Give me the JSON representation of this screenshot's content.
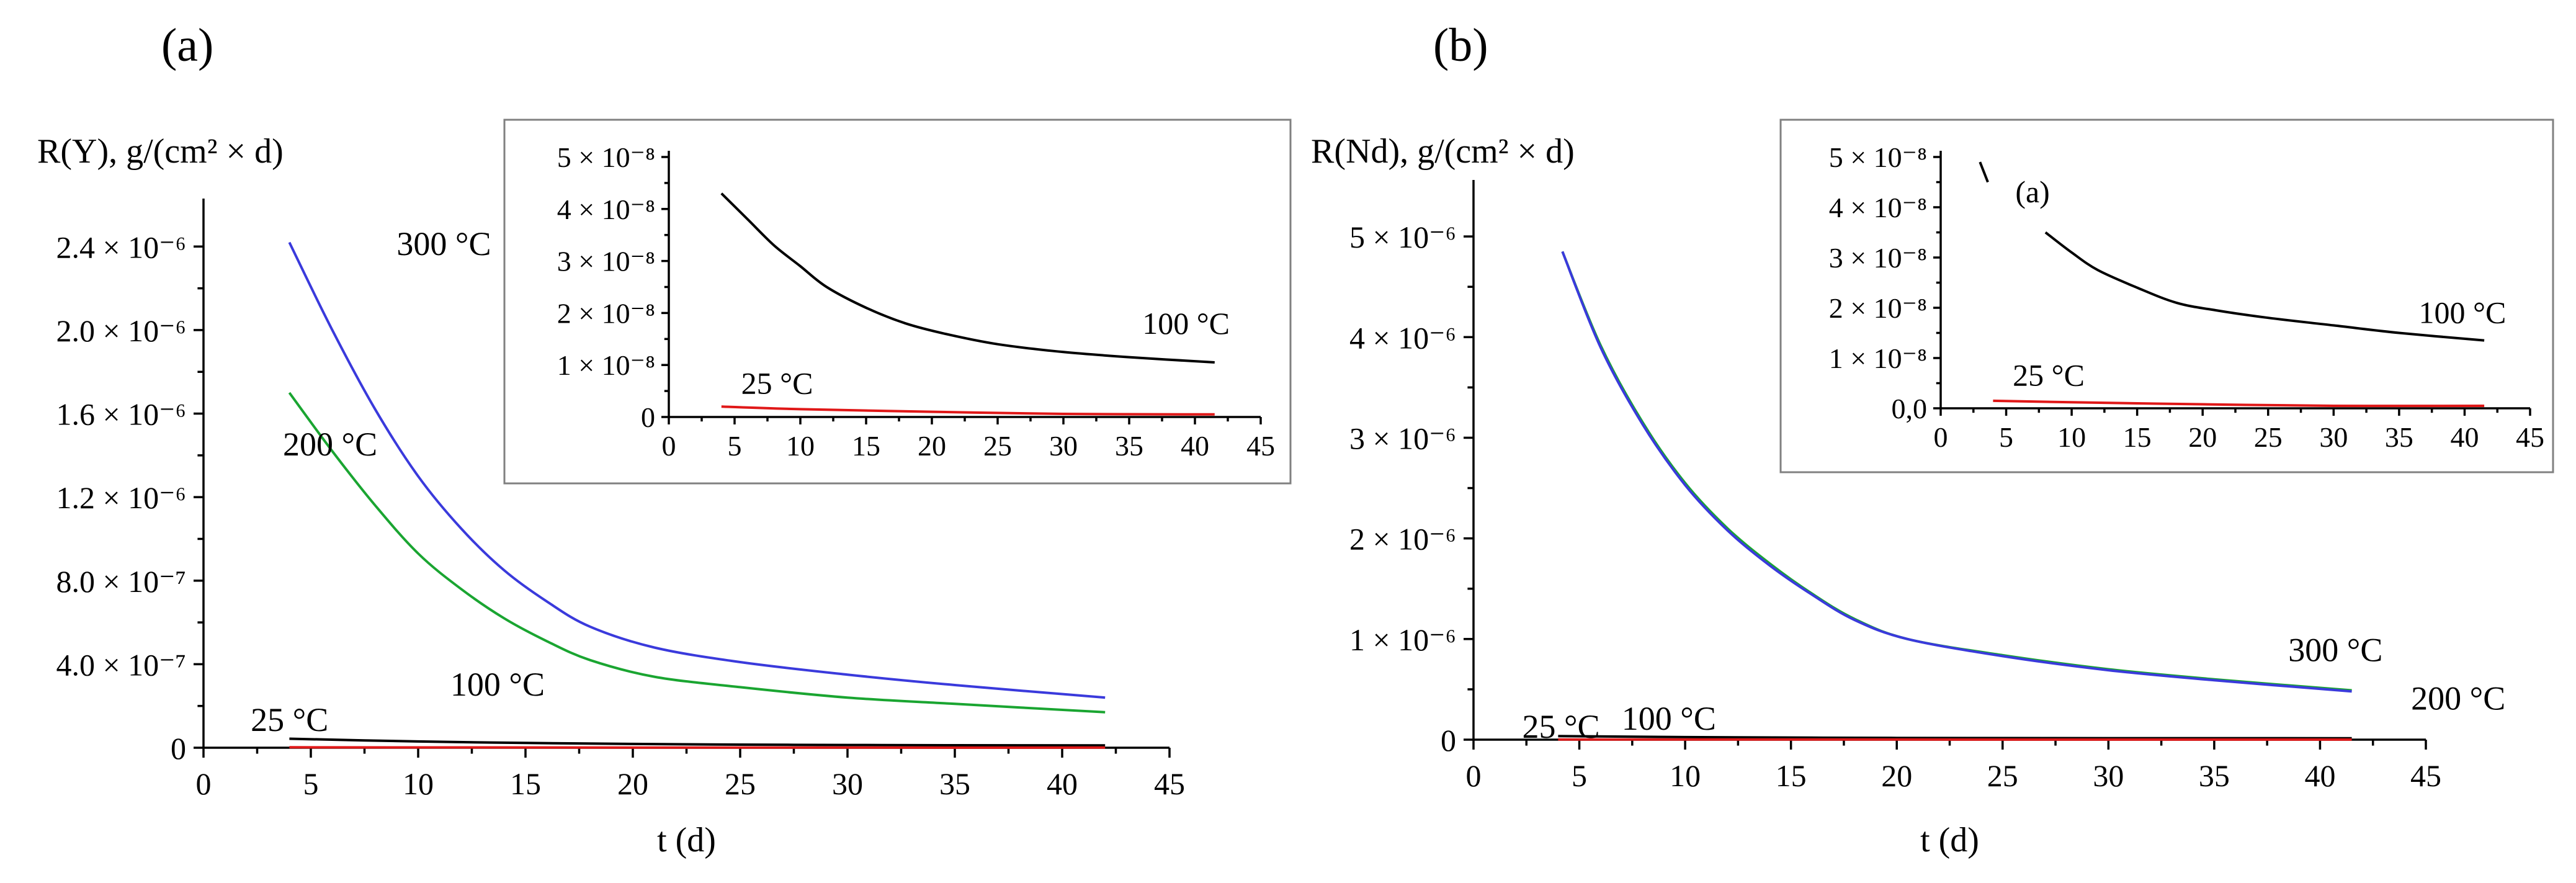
{
  "chart_data": [
    {
      "type": "line",
      "panel_label": "(a)",
      "ylabel": "R(Y), g/(cm² × d)",
      "xlabel": "t (d)",
      "xlim": [
        0,
        45
      ],
      "ylim": [
        0,
        2.6e-06
      ],
      "x_ticks": [
        0,
        5,
        10,
        15,
        20,
        25,
        30,
        35,
        40,
        45
      ],
      "y_ticks": [
        {
          "value": 0,
          "label": "0"
        },
        {
          "value": 4e-07,
          "label": "4.0 × 10⁻⁷"
        },
        {
          "value": 8e-07,
          "label": "8.0 × 10⁻⁷"
        },
        {
          "value": 1.2e-06,
          "label": "1.2 × 10⁻⁶"
        },
        {
          "value": 1.6e-06,
          "label": "1.6 × 10⁻⁶"
        },
        {
          "value": 2e-06,
          "label": "2.0 × 10⁻⁶"
        },
        {
          "value": 2.4e-06,
          "label": "2.4 × 10⁻⁶"
        }
      ],
      "series": [
        {
          "name": "300 °C",
          "color": "#3a3adc",
          "x": [
            4,
            6,
            8,
            10,
            12,
            14,
            16,
            18,
            21,
            25,
            30,
            35,
            42
          ],
          "y": [
            2.42e-06,
            2e-06,
            1.62e-06,
            1.3e-06,
            1.05e-06,
            8.5e-07,
            7e-07,
            5.8e-07,
            4.8e-07,
            4.1e-07,
            3.5e-07,
            3e-07,
            2.4e-07
          ]
        },
        {
          "name": "200 °C",
          "color": "#1aa531",
          "x": [
            4,
            6,
            8,
            10,
            12,
            14,
            16,
            18,
            21,
            25,
            30,
            35,
            42
          ],
          "y": [
            1.7e-06,
            1.42e-06,
            1.16e-06,
            9.3e-07,
            7.6e-07,
            6.2e-07,
            5.1e-07,
            4.2e-07,
            3.4e-07,
            2.9e-07,
            2.4e-07,
            2.1e-07,
            1.7e-07
          ]
        },
        {
          "name": "100 °C",
          "color": "#000000",
          "x": [
            4,
            10,
            15,
            20,
            25,
            30,
            35,
            42
          ],
          "y": [
            4.3e-08,
            3e-08,
            2.3e-08,
            1.8e-08,
            1.5e-08,
            1.3e-08,
            1.2e-08,
            1.1e-08
          ]
        },
        {
          "name": "25 °C",
          "color": "#e01818",
          "x": [
            4,
            10,
            20,
            30,
            42
          ],
          "y": [
            2e-09,
            1.5e-09,
            1e-09,
            5e-10,
            5e-10
          ]
        }
      ],
      "annotations": [
        {
          "text": "300 °C",
          "x": 9,
          "y": 2.36e-06
        },
        {
          "text": "200 °C",
          "x": 3.7,
          "y": 1.4e-06
        },
        {
          "text": "100 °C",
          "x": 11.5,
          "y": 2.5e-07
        },
        {
          "text": "25 °C",
          "x": 2.2,
          "y": 8e-08
        }
      ],
      "inset": {
        "xlim": [
          0,
          45
        ],
        "ylim": [
          0,
          5e-08
        ],
        "x_ticks": [
          0,
          5,
          10,
          15,
          20,
          25,
          30,
          35,
          40,
          45
        ],
        "y_ticks": [
          {
            "value": 0,
            "label": "0"
          },
          {
            "value": 1e-08,
            "label": "1 × 10⁻⁸"
          },
          {
            "value": 2e-08,
            "label": "2 × 10⁻⁸"
          },
          {
            "value": 3e-08,
            "label": "3 × 10⁻⁸"
          },
          {
            "value": 4e-08,
            "label": "4 × 10⁻⁸"
          },
          {
            "value": 5e-08,
            "label": "5 × 10⁻⁸"
          }
        ],
        "series": [
          {
            "name": "100 °C",
            "color": "#000000",
            "x": [
              4,
              6,
              8,
              10,
              12,
              15,
              18,
              21,
              25,
              30,
              35,
              41.5
            ],
            "y": [
              4.3e-08,
              3.8e-08,
              3.3e-08,
              2.9e-08,
              2.5e-08,
              2.1e-08,
              1.8e-08,
              1.6e-08,
              1.4e-08,
              1.25e-08,
              1.15e-08,
              1.05e-08
            ]
          },
          {
            "name": "25 °C",
            "color": "#e01818",
            "x": [
              4,
              10,
              20,
              30,
              41.5
            ],
            "y": [
              2e-09,
              1.5e-09,
              1e-09,
              6e-10,
              5e-10
            ]
          }
        ],
        "annotations": [
          {
            "text": "100 °C",
            "x": 36,
            "y": 1.6e-08
          },
          {
            "text": "25 °C",
            "x": 5.5,
            "y": 4.5e-09
          }
        ]
      }
    },
    {
      "type": "line",
      "panel_label": "(b)",
      "ylabel": "R(Nd), g/(cm² × d)",
      "xlabel": "t (d)",
      "xlim": [
        0,
        45
      ],
      "ylim": [
        0,
        5.5e-06
      ],
      "x_ticks": [
        0,
        5,
        10,
        15,
        20,
        25,
        30,
        35,
        40,
        45
      ],
      "y_ticks": [
        {
          "value": 0,
          "label": "0"
        },
        {
          "value": 1e-06,
          "label": "1 × 10⁻⁶"
        },
        {
          "value": 2e-06,
          "label": "2 × 10⁻⁶"
        },
        {
          "value": 3e-06,
          "label": "3 × 10⁻⁶"
        },
        {
          "value": 4e-06,
          "label": "4 × 10⁻⁶"
        },
        {
          "value": 5e-06,
          "label": "5 × 10⁻⁶"
        }
      ],
      "series": [
        {
          "name": "200 °C",
          "color": "#1aa531",
          "x": [
            4.2,
            6,
            8,
            10,
            12,
            14,
            16,
            18,
            20.5,
            25,
            30,
            35,
            41.5
          ],
          "y": [
            4.85e-06,
            3.92e-06,
            3.15e-06,
            2.55e-06,
            2.1e-06,
            1.75e-06,
            1.45e-06,
            1.2e-06,
            1e-06,
            8.4e-07,
            7e-07,
            6e-07,
            4.9e-07
          ]
        },
        {
          "name": "300 °C",
          "color": "#3a3adc",
          "x": [
            4.2,
            6,
            8,
            10,
            12,
            14,
            16,
            18,
            20.5,
            25,
            30,
            35,
            41.5
          ],
          "y": [
            4.85e-06,
            3.9e-06,
            3.13e-06,
            2.53e-06,
            2.08e-06,
            1.73e-06,
            1.44e-06,
            1.19e-06,
            1e-06,
            8.3e-07,
            6.9e-07,
            5.9e-07,
            4.8e-07
          ]
        },
        {
          "name": "100 °C",
          "color": "#000000",
          "x": [
            4,
            10,
            20,
            30,
            41.5
          ],
          "y": [
            3.5e-08,
            2.5e-08,
            1.7e-08,
            1.5e-08,
            1.4e-08
          ]
        },
        {
          "name": "25 °C",
          "color": "#e01818",
          "x": [
            4,
            10,
            20,
            30,
            41.5
          ],
          "y": [
            2e-09,
            1.5e-09,
            1e-09,
            6e-10,
            5e-10
          ]
        }
      ],
      "annotations": [
        {
          "text": "300 °C",
          "x": 38.5,
          "y": 7.8e-07
        },
        {
          "text": "200 °C",
          "x": 44.3,
          "y": 3e-07
        },
        {
          "text": "100 °C",
          "x": 7,
          "y": 1e-07
        },
        {
          "text": "25 °C",
          "x": 2.3,
          "y": 2e-08
        }
      ],
      "inset": {
        "xlim": [
          0,
          45
        ],
        "ylim": [
          0,
          5e-08
        ],
        "x_ticks": [
          0,
          5,
          10,
          15,
          20,
          25,
          30,
          35,
          40,
          45
        ],
        "y_ticks": [
          {
            "value": 0,
            "label": "0,0"
          },
          {
            "value": 1e-08,
            "label": "1 × 10⁻⁸"
          },
          {
            "value": 2e-08,
            "label": "2 × 10⁻⁸"
          },
          {
            "value": 3e-08,
            "label": "3 × 10⁻⁸"
          },
          {
            "value": 4e-08,
            "label": "4 × 10⁻⁸"
          },
          {
            "value": 5e-08,
            "label": "5 × 10⁻⁸"
          }
        ],
        "series": [
          {
            "name": "100 °C",
            "color": "#000000",
            "x": [
              8,
              10,
              12,
              15,
              18,
              21,
              25,
              30,
              35,
              41.5
            ],
            "y": [
              3.5e-08,
              3.1e-08,
              2.75e-08,
              2.4e-08,
              2.1e-08,
              1.95e-08,
              1.8e-08,
              1.65e-08,
              1.5e-08,
              1.35e-08
            ]
          },
          {
            "name": "25 °C",
            "color": "#e01818",
            "x": [
              4,
              10,
              20,
              30,
              41.5
            ],
            "y": [
              1.5e-09,
              1.2e-09,
              8e-10,
              5e-10,
              5e-10
            ]
          }
        ],
        "stray_segment": {
          "color": "#000000",
          "x": [
            3,
            3.6
          ],
          "y": [
            4.9e-08,
            4.5e-08
          ]
        },
        "annotations": [
          {
            "text": "(a)",
            "x": 5.7,
            "y": 4.1e-08
          },
          {
            "text": "100 °C",
            "x": 36.5,
            "y": 1.7e-08
          },
          {
            "text": "25 °C",
            "x": 5.5,
            "y": 4.5e-09
          }
        ]
      }
    }
  ]
}
